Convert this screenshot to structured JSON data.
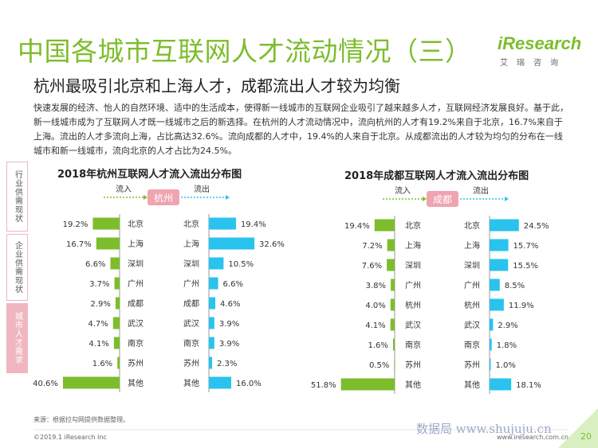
{
  "page": {
    "title": "中国各城市互联网人才流动情况（三）",
    "subtitle": "杭州最吸引北京和上海人才，成都流出人才较为均衡",
    "logo_text": "iResearch",
    "logo_cn": "艾瑞咨询",
    "intro": "快速发展的经济、怡人的自然环境、适中的生活成本，使得新一线城市的互联网企业吸引了越来越多人才，互联网经济发展良好。基于此，新一线城市成为了互联网人才既一线城市之后的新选择。在杭州的人才流动情况中，流向杭州的人才有19.2%来自于北京，16.7%来自于上海。流出的人才多流向上海，占比高达32.6%。流向成都的人才中，19.4%的人来自于北京。从成都流出的人才较为均匀的分布在一线城市和新一线城市，流向北京的人才占比为24.5%。",
    "sidebar": [
      "行业供需现状",
      "企业供需现状",
      "城市人才需求"
    ],
    "sidebar_active": 2,
    "source": "来源：根据拉勾网提供数据整理。",
    "copyright": "©2019.1 iResearch Inc",
    "site": "www.iresearch.com.cn",
    "watermark": "数据局 www.shujuju.cn",
    "page_number": "20",
    "colors": {
      "green": "#7dbd2c",
      "cyan": "#29c3ee",
      "pink": "#f0a3b1",
      "axis": "#999999"
    }
  },
  "chart_data": [
    {
      "type": "bar",
      "title": "2018年杭州互联网人才流入流出分布图",
      "center_label": "杭州",
      "inflow_label": "流入",
      "outflow_label": "流出",
      "series": [
        {
          "name": "流入",
          "categories": [
            "北京",
            "上海",
            "深圳",
            "广州",
            "成都",
            "武汉",
            "南京",
            "苏州",
            "其他"
          ],
          "values": [
            19.2,
            16.7,
            6.6,
            3.7,
            2.9,
            4.7,
            4.1,
            1.6,
            40.6
          ],
          "labels": [
            "19.2%",
            "16.7%",
            "6.6%",
            "3.7%",
            "2.9%",
            "4.7%",
            "4.1%",
            "1.6%",
            "40.6%"
          ]
        },
        {
          "name": "流出",
          "categories": [
            "北京",
            "上海",
            "深圳",
            "广州",
            "成都",
            "武汉",
            "南京",
            "苏州",
            "其他"
          ],
          "values": [
            19.4,
            32.6,
            10.5,
            6.6,
            4.6,
            3.9,
            3.9,
            2.3,
            16.0
          ],
          "labels": [
            "19.4%",
            "32.6%",
            "10.5%",
            "6.6%",
            "4.6%",
            "3.9%",
            "3.9%",
            "2.3%",
            "16.0%"
          ]
        }
      ]
    },
    {
      "type": "bar",
      "title": "2018年成都互联网人才流入流出分布图",
      "center_label": "成都",
      "inflow_label": "流入",
      "outflow_label": "流出",
      "series": [
        {
          "name": "流入",
          "categories": [
            "北京",
            "上海",
            "深圳",
            "广州",
            "杭州",
            "武汉",
            "南京",
            "苏州",
            "其他"
          ],
          "values": [
            19.4,
            7.2,
            7.6,
            3.8,
            4.0,
            4.1,
            1.6,
            0.5,
            51.8
          ],
          "labels": [
            "19.4%",
            "7.2%",
            "7.6%",
            "3.8%",
            "4.0%",
            "4.1%",
            "1.6%",
            "0.5%",
            "51.8%"
          ]
        },
        {
          "name": "流出",
          "categories": [
            "北京",
            "上海",
            "深圳",
            "广州",
            "杭州",
            "武汉",
            "南京",
            "苏州",
            "其他"
          ],
          "values": [
            24.5,
            15.7,
            15.5,
            8.5,
            11.9,
            2.9,
            1.8,
            1.0,
            18.1
          ],
          "labels": [
            "24.5%",
            "15.7%",
            "15.5%",
            "8.5%",
            "11.9%",
            "2.9%",
            "1.8%",
            "1.0%",
            "18.1%"
          ]
        }
      ]
    }
  ]
}
